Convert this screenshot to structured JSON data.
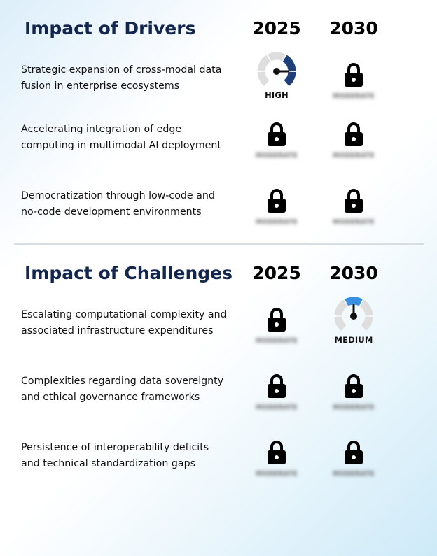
{
  "drivers": {
    "title": "Impact of Drivers",
    "year_1": "2025",
    "year_2": "2030",
    "rows": [
      {
        "text_line1": "Strategic expansion of cross-modal data",
        "text_line2": "fusion in enterprise ecosystems",
        "y2025": {
          "type": "gauge",
          "level": "high",
          "label": "HIGH",
          "icon": "gauge-high-icon"
        },
        "y2030": {
          "type": "locked",
          "icon": "lock-icon",
          "blurred_label": "MODERATE"
        }
      },
      {
        "text_line1": "Accelerating integration of edge",
        "text_line2": "computing in multimodal AI deployment",
        "y2025": {
          "type": "locked",
          "icon": "lock-icon",
          "blurred_label": "MODERATE"
        },
        "y2030": {
          "type": "locked",
          "icon": "lock-icon",
          "blurred_label": "MODERATE"
        }
      },
      {
        "text_line1": "Democratization through low-code and",
        "text_line2": "no-code development environments",
        "y2025": {
          "type": "locked",
          "icon": "lock-icon",
          "blurred_label": "MODERATE"
        },
        "y2030": {
          "type": "locked",
          "icon": "lock-icon",
          "blurred_label": "MODERATE"
        }
      }
    ]
  },
  "challenges": {
    "title": "Impact of Challenges",
    "year_1": "2025",
    "year_2": "2030",
    "rows": [
      {
        "text_line1": "Escalating computational complexity and",
        "text_line2": "associated infrastructure expenditures",
        "y2025": {
          "type": "locked",
          "icon": "lock-icon",
          "blurred_label": "MODERATE"
        },
        "y2030": {
          "type": "gauge",
          "level": "medium",
          "label": "MEDIUM",
          "icon": "gauge-medium-icon"
        }
      },
      {
        "text_line1": "Complexities regarding data sovereignty",
        "text_line2": "and ethical governance frameworks",
        "y2025": {
          "type": "locked",
          "icon": "lock-icon",
          "blurred_label": "MODERATE"
        },
        "y2030": {
          "type": "locked",
          "icon": "lock-icon",
          "blurred_label": "MODERATE"
        }
      },
      {
        "text_line1": "Persistence of interoperability deficits",
        "text_line2": "and technical standardization gaps",
        "y2025": {
          "type": "locked",
          "icon": "lock-icon",
          "blurred_label": "MODERATE"
        },
        "y2030": {
          "type": "locked",
          "icon": "lock-icon",
          "blurred_label": "MODERATE"
        }
      }
    ]
  },
  "colors": {
    "title": "#13264d",
    "gauge_high": "#1f3f7a",
    "gauge_medium": "#3b8fe0",
    "gauge_track": "#dedede",
    "lock": "#000000"
  }
}
